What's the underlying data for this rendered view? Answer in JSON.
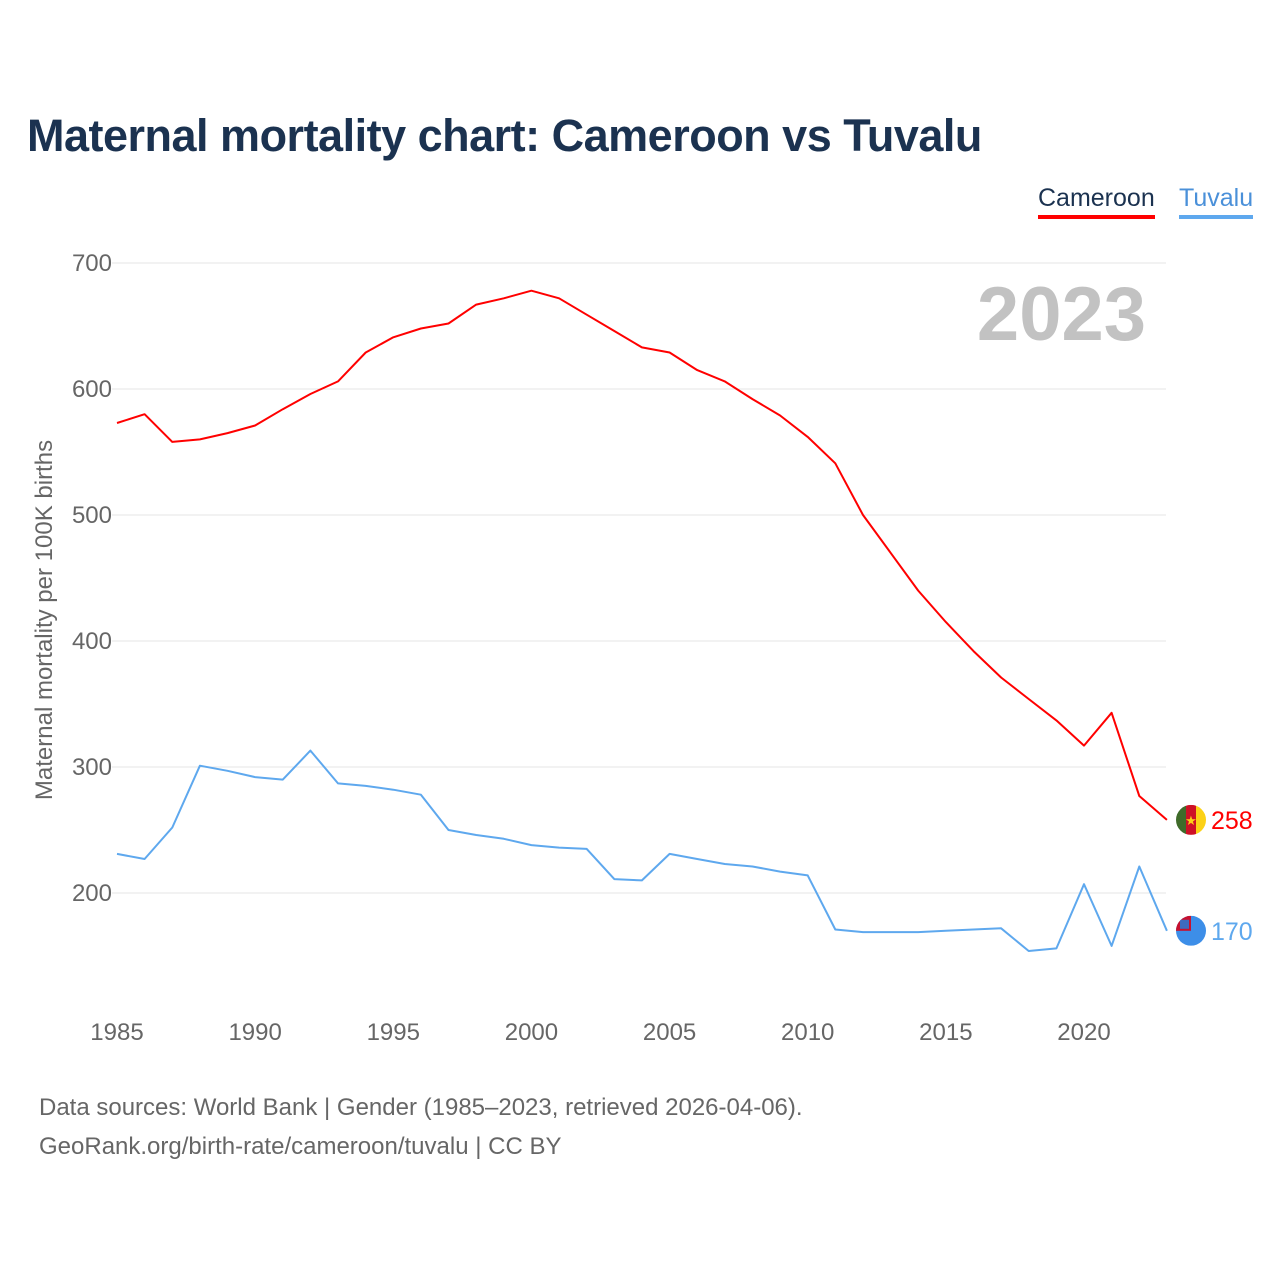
{
  "title": "Maternal mortality chart: Cameroon vs Tuvalu",
  "source_line1": "Data sources: World Bank | Gender (1985–2023, retrieved 2026-04-06).",
  "source_line2": "GeoRank.org/birth-rate/cameroon/tuvalu | CC BY",
  "chart_data": {
    "type": "line",
    "title": "Maternal mortality chart: Cameroon vs Tuvalu",
    "xlabel": "",
    "ylabel": "Maternal mortality per 100K births",
    "year_label": "2023",
    "xlim": [
      1985,
      2023
    ],
    "ylim": [
      130,
      720
    ],
    "xticks": [
      1985,
      1990,
      1995,
      2000,
      2005,
      2010,
      2015,
      2020
    ],
    "yticks": [
      200,
      300,
      400,
      500,
      600,
      700
    ],
    "grid": true,
    "legend": "top-right",
    "x": [
      1985,
      1986,
      1987,
      1988,
      1989,
      1990,
      1991,
      1992,
      1993,
      1994,
      1995,
      1996,
      1997,
      1998,
      1999,
      2000,
      2001,
      2002,
      2003,
      2004,
      2005,
      2006,
      2007,
      2008,
      2009,
      2010,
      2011,
      2012,
      2013,
      2014,
      2015,
      2016,
      2017,
      2018,
      2019,
      2020,
      2021,
      2022,
      2023
    ],
    "series": [
      {
        "name": "Cameroon",
        "color": "#ff0000",
        "end_label": "258",
        "values": [
          573,
          580,
          558,
          560,
          565,
          571,
          584,
          596,
          606,
          629,
          641,
          648,
          652,
          667,
          672,
          678,
          672,
          659,
          646,
          633,
          629,
          615,
          606,
          592,
          579,
          562,
          541,
          500,
          470,
          440,
          415,
          392,
          371,
          354,
          337,
          317,
          343,
          277,
          258
        ]
      },
      {
        "name": "Tuvalu",
        "color": "#5ea8ee",
        "end_label": "170",
        "values": [
          231,
          227,
          252,
          301,
          297,
          292,
          290,
          313,
          287,
          285,
          282,
          278,
          250,
          246,
          243,
          238,
          236,
          235,
          211,
          210,
          231,
          227,
          223,
          221,
          217,
          214,
          171,
          169,
          169,
          169,
          170,
          171,
          172,
          154,
          156,
          207,
          158,
          221,
          170
        ]
      }
    ]
  }
}
